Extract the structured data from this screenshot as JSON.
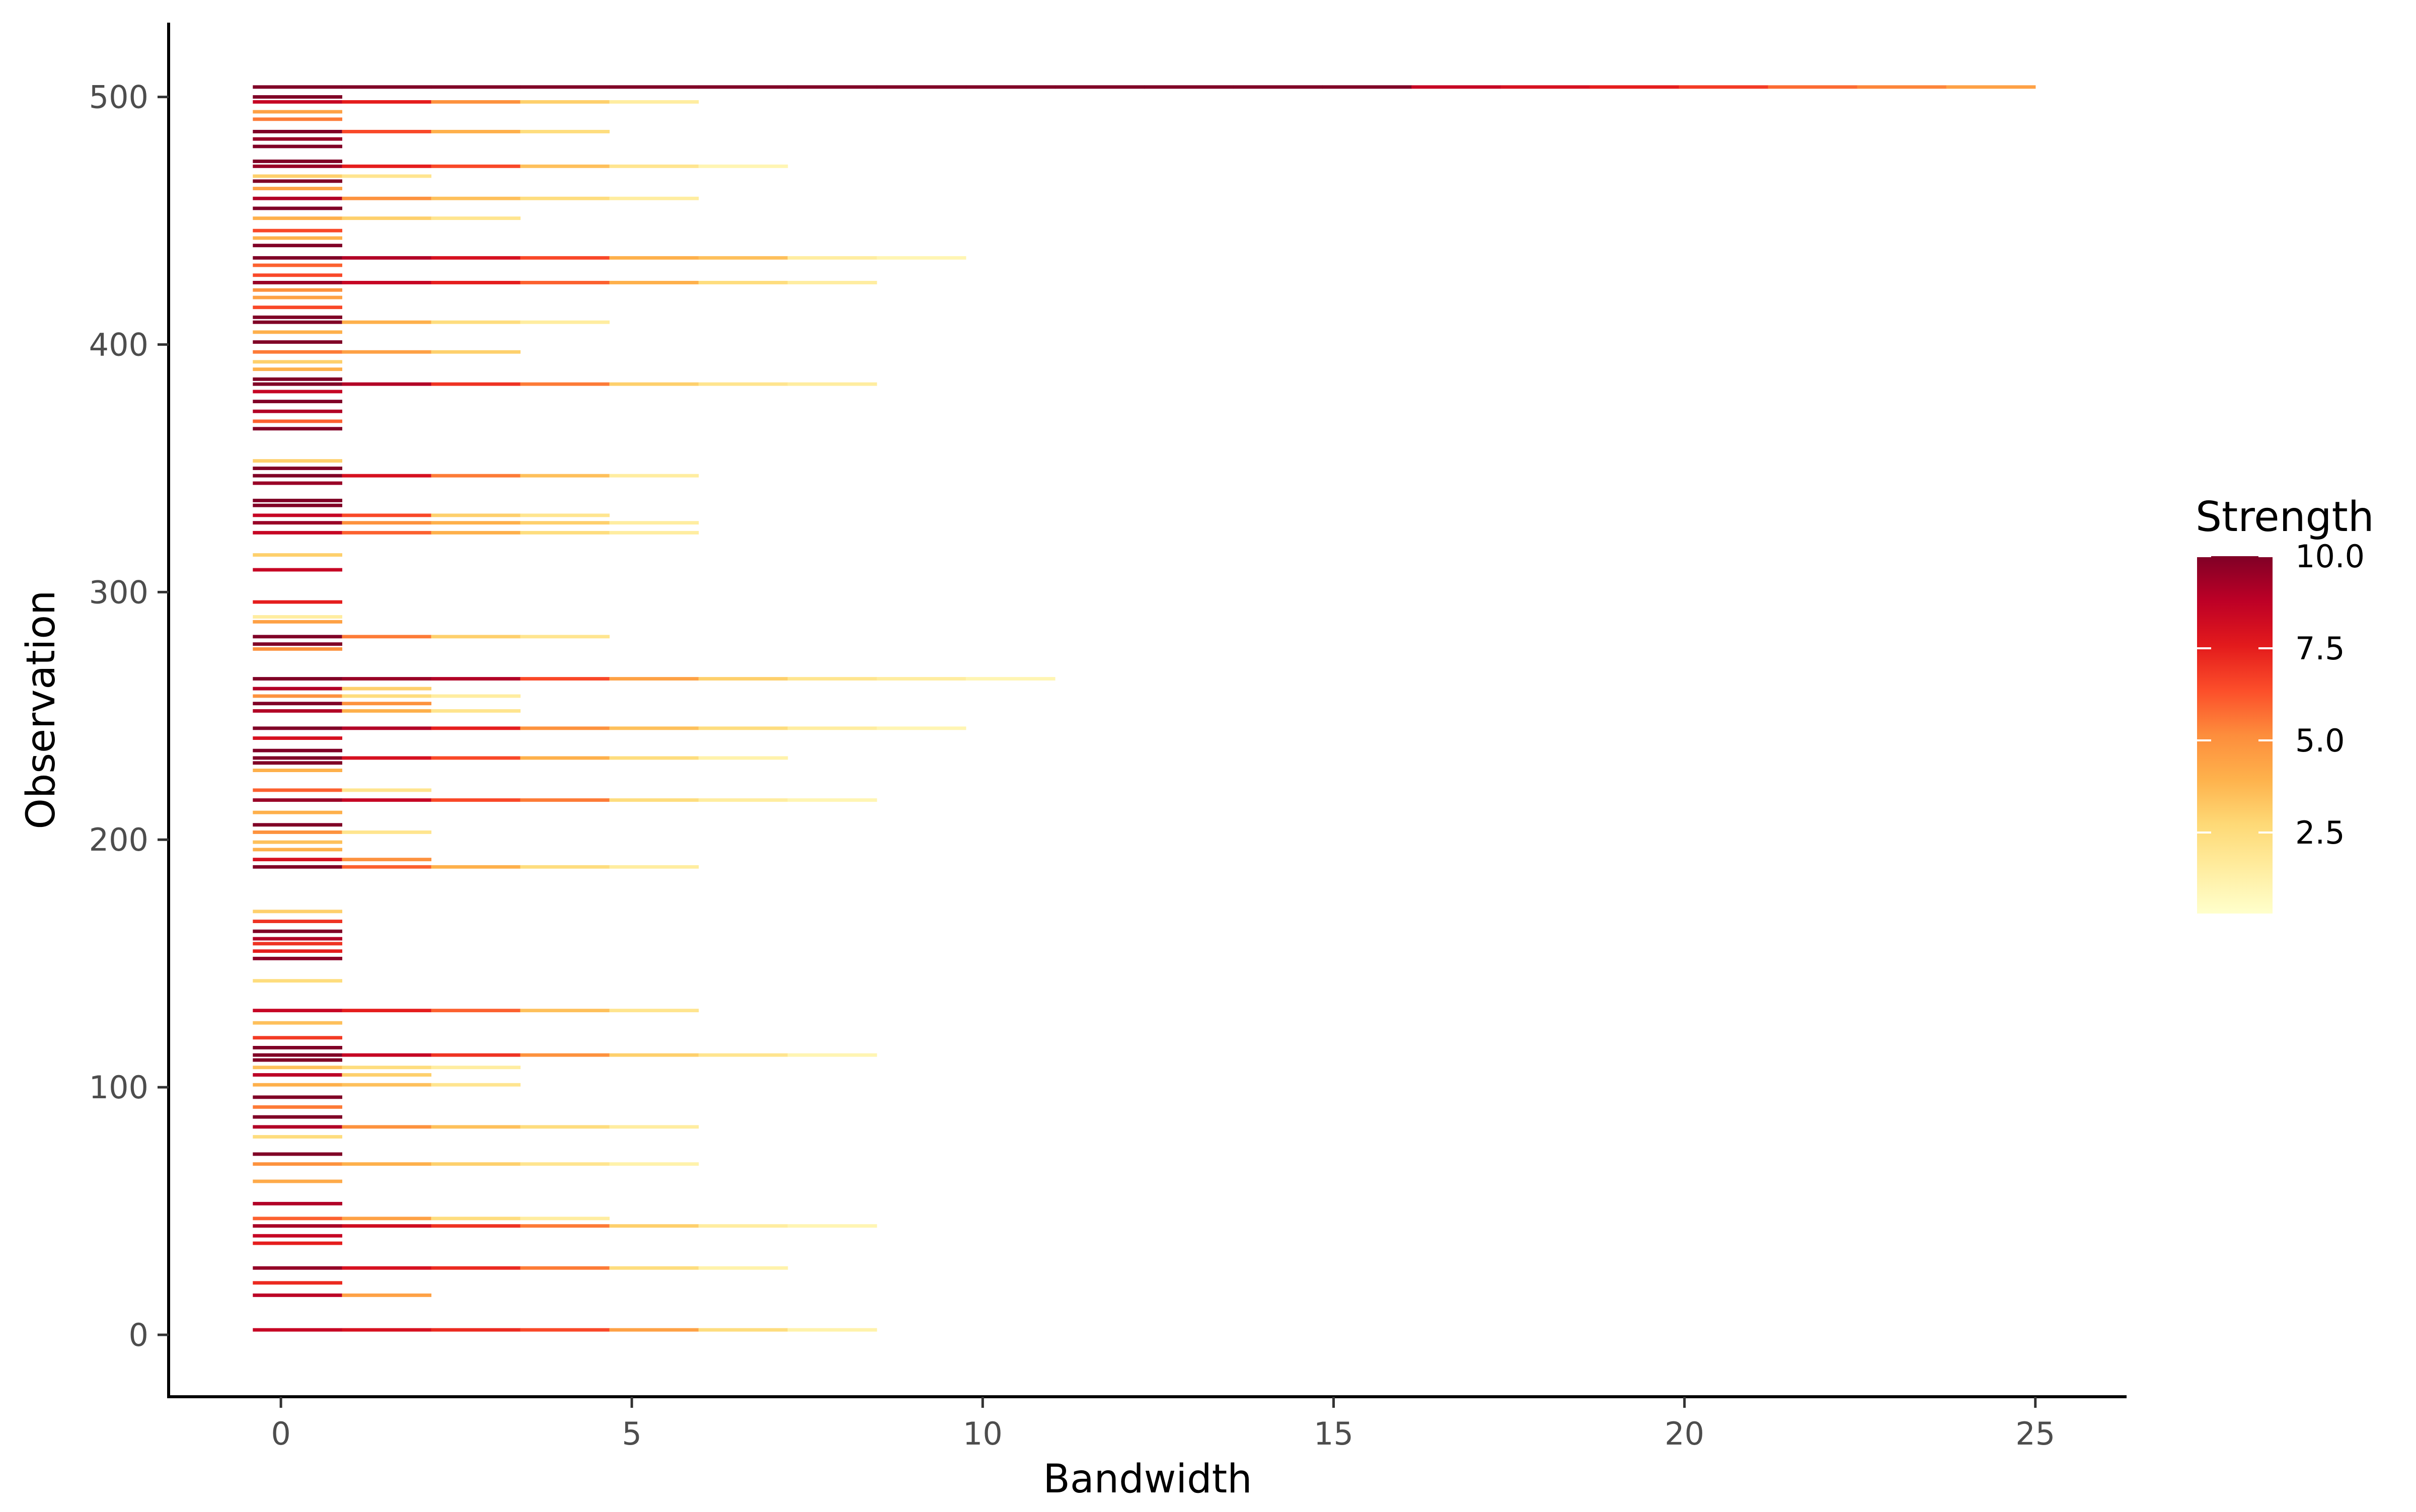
{
  "chart_data": {
    "type": "heatmap",
    "title": "",
    "xlabel": "Bandwidth",
    "ylabel": "Observation",
    "xlim": [
      -1.6,
      26.3
    ],
    "ylim": [
      -25,
      530
    ],
    "x_ticks": [
      0,
      5,
      10,
      15,
      20,
      25
    ],
    "y_ticks": [
      0,
      100,
      200,
      300,
      400,
      500
    ],
    "grid": false,
    "legend": {
      "title": "Strength",
      "position": "right",
      "range": [
        0.3,
        10.0
      ],
      "ticks": [
        2.5,
        5.0,
        7.5,
        10.0
      ],
      "tick_labels": [
        "2.5",
        "5.0",
        "7.5",
        "10.0"
      ]
    },
    "color_scale": {
      "low": "#FFFFE5",
      "stops": [
        "#FFFFCC",
        "#FFEDA0",
        "#FED976",
        "#FEB24C",
        "#FD8D3C",
        "#FC4E2A",
        "#E31A1C",
        "#BD0026",
        "#800026"
      ]
    },
    "bin_edges": [
      -0.4,
      0.87,
      2.14,
      3.41,
      4.68,
      5.95,
      7.22,
      8.49,
      9.76,
      11.03,
      12.3,
      13.57,
      14.84,
      16.11,
      17.38,
      18.65,
      19.92,
      21.19,
      22.46,
      23.73,
      25.0
    ],
    "rows": [
      {
        "y": 2,
        "v": [
          8.5,
          8.0,
          7.2,
          6.5,
          4.5,
          2.5,
          1.2
        ]
      },
      {
        "y": 16,
        "v": [
          8.8,
          4.5
        ]
      },
      {
        "y": 21,
        "v": [
          7.2
        ]
      },
      {
        "y": 27,
        "v": [
          9.6,
          8.0,
          7.2,
          5.5,
          2.5,
          1.2
        ]
      },
      {
        "y": 37,
        "v": [
          7.5
        ]
      },
      {
        "y": 40,
        "v": [
          8.5
        ]
      },
      {
        "y": 44,
        "v": [
          9.2,
          8.2,
          7.0,
          5.5,
          3.0,
          1.5,
          1.0
        ]
      },
      {
        "y": 47,
        "v": [
          6.0,
          4.5,
          2.5,
          1.5
        ]
      },
      {
        "y": 53,
        "v": [
          9.0
        ]
      },
      {
        "y": 62,
        "v": [
          4.2
        ]
      },
      {
        "y": 69,
        "v": [
          5.0,
          4.0,
          3.0,
          2.0,
          1.2
        ]
      },
      {
        "y": 73,
        "v": [
          10.0
        ]
      },
      {
        "y": 80,
        "v": [
          2.5
        ]
      },
      {
        "y": 84,
        "v": [
          9.0,
          5.0,
          3.5,
          2.5,
          1.5
        ]
      },
      {
        "y": 88,
        "v": [
          10.0
        ]
      },
      {
        "y": 92,
        "v": [
          5.5
        ]
      },
      {
        "y": 96,
        "v": [
          10.0
        ]
      },
      {
        "y": 101,
        "v": [
          4.0,
          3.5,
          2.0
        ]
      },
      {
        "y": 105,
        "v": [
          8.8,
          3.0
        ]
      },
      {
        "y": 108,
        "v": [
          3.5,
          2.5,
          1.5
        ]
      },
      {
        "y": 111,
        "v": [
          10.0
        ]
      },
      {
        "y": 113,
        "v": [
          10.0,
          8.5,
          7.0,
          5.0,
          3.0,
          2.0,
          1.0
        ]
      },
      {
        "y": 116,
        "v": [
          10.0
        ]
      },
      {
        "y": 120,
        "v": [
          6.8
        ]
      },
      {
        "y": 126,
        "v": [
          3.5
        ]
      },
      {
        "y": 131,
        "v": [
          8.5,
          7.5,
          6.0,
          3.5,
          2.0
        ]
      },
      {
        "y": 143,
        "v": [
          2.5
        ]
      },
      {
        "y": 152,
        "v": [
          9.8
        ]
      },
      {
        "y": 155,
        "v": [
          7.5
        ]
      },
      {
        "y": 158,
        "v": [
          7.0
        ]
      },
      {
        "y": 160,
        "v": [
          9.0
        ]
      },
      {
        "y": 163,
        "v": [
          10.0
        ]
      },
      {
        "y": 167,
        "v": [
          7.0
        ]
      },
      {
        "y": 171,
        "v": [
          3.0
        ]
      },
      {
        "y": 189,
        "v": [
          10.0,
          6.0,
          4.0,
          2.5,
          1.5
        ]
      },
      {
        "y": 192,
        "v": [
          8.0,
          5.0
        ]
      },
      {
        "y": 196,
        "v": [
          4.0
        ]
      },
      {
        "y": 199,
        "v": [
          3.5
        ]
      },
      {
        "y": 203,
        "v": [
          5.0,
          2.0
        ]
      },
      {
        "y": 206,
        "v": [
          10.0
        ]
      },
      {
        "y": 211,
        "v": [
          4.0
        ]
      },
      {
        "y": 216,
        "v": [
          9.5,
          8.5,
          6.5,
          5.5,
          2.5,
          1.5,
          1.0
        ]
      },
      {
        "y": 220,
        "v": [
          6.0,
          2.0
        ]
      },
      {
        "y": 228,
        "v": [
          4.0
        ]
      },
      {
        "y": 231,
        "v": [
          10.0
        ]
      },
      {
        "y": 233,
        "v": [
          10.0,
          8.0,
          6.5,
          4.0,
          2.5,
          1.2
        ]
      },
      {
        "y": 236,
        "v": [
          10.0
        ]
      },
      {
        "y": 241,
        "v": [
          8.0
        ]
      },
      {
        "y": 245,
        "v": [
          10.0,
          9.0,
          7.5,
          5.0,
          3.5,
          2.5,
          1.5,
          1.0
        ]
      },
      {
        "y": 252,
        "v": [
          9.0,
          4.0,
          2.0
        ]
      },
      {
        "y": 255,
        "v": [
          10.0,
          5.0
        ]
      },
      {
        "y": 258,
        "v": [
          5.0,
          2.5,
          1.5
        ]
      },
      {
        "y": 261,
        "v": [
          9.0,
          3.0
        ]
      },
      {
        "y": 265,
        "v": [
          10.0,
          9.5,
          9.0,
          6.5,
          4.5,
          3.0,
          2.0,
          1.5,
          1.0
        ]
      },
      {
        "y": 277,
        "v": [
          5.0
        ]
      },
      {
        "y": 279,
        "v": [
          10.0
        ]
      },
      {
        "y": 282,
        "v": [
          10.0,
          5.5,
          3.0,
          2.0
        ]
      },
      {
        "y": 288,
        "v": [
          4.5
        ]
      },
      {
        "y": 290,
        "v": [
          1.5
        ]
      },
      {
        "y": 296,
        "v": [
          7.5
        ]
      },
      {
        "y": 309,
        "v": [
          8.5
        ]
      },
      {
        "y": 315,
        "v": [
          3.0
        ]
      },
      {
        "y": 324,
        "v": [
          8.5,
          6.0,
          4.0,
          2.5,
          1.5
        ]
      },
      {
        "y": 328,
        "v": [
          9.5,
          5.0,
          4.0,
          3.0,
          1.5
        ]
      },
      {
        "y": 331,
        "v": [
          8.5,
          6.5,
          3.0,
          2.0
        ]
      },
      {
        "y": 335,
        "v": [
          10.0
        ]
      },
      {
        "y": 337,
        "v": [
          10.0
        ]
      },
      {
        "y": 344,
        "v": [
          9.5
        ]
      },
      {
        "y": 347,
        "v": [
          10.0,
          8.0,
          5.5,
          3.5,
          1.5
        ]
      },
      {
        "y": 350,
        "v": [
          10.0
        ]
      },
      {
        "y": 353,
        "v": [
          3.0
        ]
      },
      {
        "y": 366,
        "v": [
          10.0
        ]
      },
      {
        "y": 369,
        "v": [
          6.0
        ]
      },
      {
        "y": 373,
        "v": [
          9.0
        ]
      },
      {
        "y": 377,
        "v": [
          10.0
        ]
      },
      {
        "y": 381,
        "v": [
          8.5
        ]
      },
      {
        "y": 384,
        "v": [
          10.0,
          9.0,
          7.0,
          5.5,
          3.0,
          2.0,
          1.5
        ]
      },
      {
        "y": 386,
        "v": [
          10.0
        ]
      },
      {
        "y": 390,
        "v": [
          4.0
        ]
      },
      {
        "y": 393,
        "v": [
          3.0
        ]
      },
      {
        "y": 397,
        "v": [
          5.5,
          4.5,
          3.0
        ]
      },
      {
        "y": 401,
        "v": [
          10.0
        ]
      },
      {
        "y": 405,
        "v": [
          4.0
        ]
      },
      {
        "y": 409,
        "v": [
          10.0,
          4.0,
          2.5,
          1.5
        ]
      },
      {
        "y": 411,
        "v": [
          10.0
        ]
      },
      {
        "y": 415,
        "v": [
          6.5
        ]
      },
      {
        "y": 419,
        "v": [
          4.5
        ]
      },
      {
        "y": 422,
        "v": [
          5.0
        ]
      },
      {
        "y": 425,
        "v": [
          9.5,
          8.5,
          7.5,
          6.0,
          4.0,
          2.5,
          1.5
        ]
      },
      {
        "y": 428,
        "v": [
          6.5
        ]
      },
      {
        "y": 432,
        "v": [
          6.0
        ]
      },
      {
        "y": 435,
        "v": [
          10.0,
          9.0,
          8.0,
          6.5,
          4.0,
          3.5,
          1.5,
          1.0
        ]
      },
      {
        "y": 440,
        "v": [
          10.0
        ]
      },
      {
        "y": 443,
        "v": [
          4.0
        ]
      },
      {
        "y": 446,
        "v": [
          6.5
        ]
      },
      {
        "y": 451,
        "v": [
          4.0,
          3.0,
          2.0
        ]
      },
      {
        "y": 455,
        "v": [
          10.0
        ]
      },
      {
        "y": 459,
        "v": [
          9.0,
          5.0,
          3.5,
          2.5,
          1.5
        ]
      },
      {
        "y": 463,
        "v": [
          4.5
        ]
      },
      {
        "y": 466,
        "v": [
          10.0
        ]
      },
      {
        "y": 468,
        "v": [
          3.0,
          2.0
        ]
      },
      {
        "y": 472,
        "v": [
          9.5,
          7.5,
          6.5,
          3.5,
          2.0,
          1.0
        ]
      },
      {
        "y": 474,
        "v": [
          10.0
        ]
      },
      {
        "y": 480,
        "v": [
          10.0
        ]
      },
      {
        "y": 483,
        "v": [
          9.5
        ]
      },
      {
        "y": 486,
        "v": [
          10.0,
          6.5,
          4.0,
          2.5
        ]
      },
      {
        "y": 491,
        "v": [
          5.5
        ]
      },
      {
        "y": 494,
        "v": [
          4.5
        ]
      },
      {
        "y": 498,
        "v": [
          8.5,
          7.5,
          5.0,
          3.0,
          1.5
        ]
      },
      {
        "y": 500,
        "v": [
          10.0
        ]
      },
      {
        "y": 504,
        "v": [
          10.0,
          10.0,
          10.0,
          10.0,
          10.0,
          10.0,
          10.0,
          10.0,
          10.0,
          10.0,
          10.0,
          10.0,
          10.0,
          8.5,
          8.0,
          7.5,
          6.8,
          5.8,
          5.3,
          4.5
        ]
      }
    ]
  }
}
